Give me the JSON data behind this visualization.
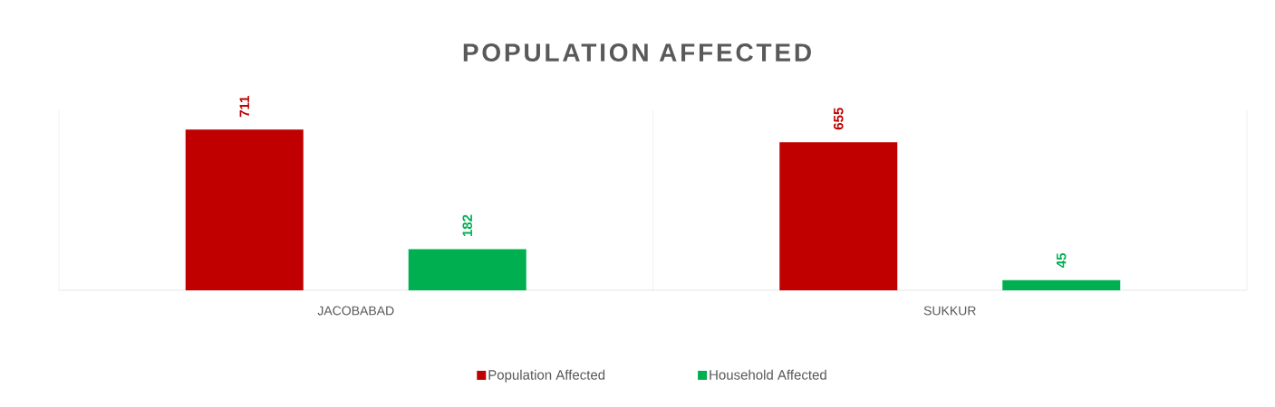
{
  "chart_data": {
    "type": "bar",
    "title": "POPULATION AFFECTED",
    "categories": [
      "JACOBABAD",
      "SUKKUR"
    ],
    "series": [
      {
        "name": "Population Affected",
        "color": "#c00000",
        "values": [
          711,
          655
        ]
      },
      {
        "name": "Household Affected",
        "color": "#00b050",
        "values": [
          182,
          45
        ]
      }
    ],
    "data_labels": true,
    "grid": "x",
    "legend": "bottom"
  }
}
